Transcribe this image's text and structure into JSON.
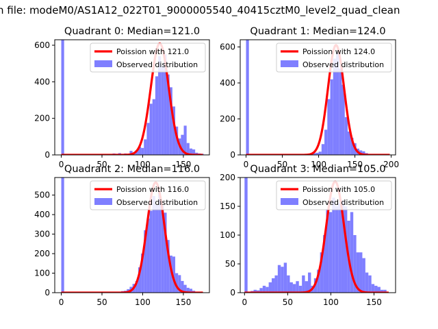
{
  "suptitle": "n file: modeM0/AS1A12_022T01_9000005540_40415cztM0_level2_quad_clean",
  "colors": {
    "bars": "#7f7fff",
    "fit": "#ff0000",
    "frame": "#000000"
  },
  "chart_data": [
    {
      "type": "bar",
      "title": "Quadrant 0: Median=121.0",
      "xlim": [
        -8,
        182
      ],
      "ylim": [
        0,
        630
      ],
      "xticks": [
        0,
        50,
        100,
        150
      ],
      "yticks": [
        0,
        200,
        400,
        600
      ],
      "legend": {
        "position": "top-right",
        "entries": [
          "Poission with 121.0",
          "Observed distribution"
        ]
      },
      "median": 121.0,
      "poisson_peak": 610,
      "bin_width": 3.5,
      "bins": [
        {
          "x": 0,
          "y": 630
        },
        {
          "x": 63,
          "y": 8
        },
        {
          "x": 66.5,
          "y": 6
        },
        {
          "x": 70,
          "y": 10
        },
        {
          "x": 73.5,
          "y": 5
        },
        {
          "x": 77,
          "y": 8
        },
        {
          "x": 80.5,
          "y": 5
        },
        {
          "x": 84,
          "y": 22
        },
        {
          "x": 87.5,
          "y": 12
        },
        {
          "x": 91,
          "y": 25
        },
        {
          "x": 94.5,
          "y": 45
        },
        {
          "x": 98,
          "y": 38
        },
        {
          "x": 101.5,
          "y": 85
        },
        {
          "x": 105,
          "y": 175
        },
        {
          "x": 108.5,
          "y": 280
        },
        {
          "x": 112,
          "y": 305
        },
        {
          "x": 115.5,
          "y": 430
        },
        {
          "x": 119,
          "y": 540
        },
        {
          "x": 122.5,
          "y": 485
        },
        {
          "x": 126,
          "y": 550
        },
        {
          "x": 129.5,
          "y": 440
        },
        {
          "x": 133,
          "y": 370
        },
        {
          "x": 136.5,
          "y": 265
        },
        {
          "x": 140,
          "y": 155
        },
        {
          "x": 143.5,
          "y": 90
        },
        {
          "x": 147,
          "y": 110
        },
        {
          "x": 150.5,
          "y": 160
        },
        {
          "x": 154,
          "y": 65
        },
        {
          "x": 157.5,
          "y": 35
        },
        {
          "x": 161,
          "y": 30
        },
        {
          "x": 164.5,
          "y": 12
        },
        {
          "x": 168,
          "y": 8
        },
        {
          "x": 171.5,
          "y": 6
        }
      ]
    },
    {
      "type": "bar",
      "title": "Quadrant 1: Median=124.0",
      "xlim": [
        -8,
        206
      ],
      "ylim": [
        0,
        640
      ],
      "xticks": [
        0,
        50,
        100,
        150,
        200
      ],
      "yticks": [
        0,
        200,
        400,
        600
      ],
      "legend": {
        "position": "top-right",
        "entries": [
          "Poission with 124.0",
          "Observed distribution"
        ]
      },
      "median": 124.0,
      "poisson_peak": 610,
      "bin_width": 4,
      "bins": [
        {
          "x": 0,
          "y": 640
        },
        {
          "x": 92,
          "y": 10
        },
        {
          "x": 96,
          "y": 12
        },
        {
          "x": 100,
          "y": 18
        },
        {
          "x": 104,
          "y": 60
        },
        {
          "x": 108,
          "y": 140
        },
        {
          "x": 112,
          "y": 310
        },
        {
          "x": 116,
          "y": 420
        },
        {
          "x": 120,
          "y": 535
        },
        {
          "x": 124,
          "y": 570
        },
        {
          "x": 128,
          "y": 480
        },
        {
          "x": 132,
          "y": 390
        },
        {
          "x": 136,
          "y": 210
        },
        {
          "x": 140,
          "y": 130
        },
        {
          "x": 144,
          "y": 95
        },
        {
          "x": 148,
          "y": 65
        },
        {
          "x": 152,
          "y": 35
        },
        {
          "x": 156,
          "y": 25
        },
        {
          "x": 160,
          "y": 20
        },
        {
          "x": 164,
          "y": 10
        }
      ]
    },
    {
      "type": "bar",
      "title": "Quadrant 2: Median=116.0",
      "xlim": [
        -8,
        182
      ],
      "ylim": [
        0,
        590
      ],
      "xticks": [
        0,
        50,
        100,
        150
      ],
      "yticks": [
        0,
        100,
        200,
        300,
        400,
        500
      ],
      "legend": {
        "position": "top-right",
        "entries": [
          "Poission with 116.0",
          "Observed distribution"
        ]
      },
      "median": 116.0,
      "poisson_peak": 565,
      "bin_width": 3.5,
      "bins": [
        {
          "x": 0,
          "y": 590
        },
        {
          "x": 70,
          "y": 5
        },
        {
          "x": 73.5,
          "y": 8
        },
        {
          "x": 77,
          "y": 10
        },
        {
          "x": 80.5,
          "y": 18
        },
        {
          "x": 84,
          "y": 30
        },
        {
          "x": 87.5,
          "y": 45
        },
        {
          "x": 91,
          "y": 60
        },
        {
          "x": 94.5,
          "y": 130
        },
        {
          "x": 98,
          "y": 200
        },
        {
          "x": 101.5,
          "y": 320
        },
        {
          "x": 105,
          "y": 380
        },
        {
          "x": 108.5,
          "y": 420
        },
        {
          "x": 112,
          "y": 495
        },
        {
          "x": 115.5,
          "y": 450
        },
        {
          "x": 119,
          "y": 510
        },
        {
          "x": 122.5,
          "y": 445
        },
        {
          "x": 126,
          "y": 410
        },
        {
          "x": 129.5,
          "y": 270
        },
        {
          "x": 133,
          "y": 190
        },
        {
          "x": 136.5,
          "y": 185
        },
        {
          "x": 140,
          "y": 100
        },
        {
          "x": 143.5,
          "y": 90
        },
        {
          "x": 147,
          "y": 60
        },
        {
          "x": 150.5,
          "y": 40
        },
        {
          "x": 154,
          "y": 25
        },
        {
          "x": 157.5,
          "y": 20
        },
        {
          "x": 161,
          "y": 10
        }
      ]
    },
    {
      "type": "bar",
      "title": "Quadrant 3: Median=105.0",
      "xlim": [
        -5,
        175
      ],
      "ylim": [
        0,
        200
      ],
      "xticks": [
        0,
        50,
        100,
        150
      ],
      "yticks": [
        0,
        50,
        100,
        150,
        200
      ],
      "legend": {
        "position": "top-right",
        "entries": [
          "Poission with 105.0",
          "Observed distribution"
        ]
      },
      "median": 105.0,
      "poisson_peak": 193,
      "bin_width": 3.5,
      "bins": [
        {
          "x": 0,
          "y": 200
        },
        {
          "x": 7,
          "y": 3
        },
        {
          "x": 10.5,
          "y": 5
        },
        {
          "x": 14,
          "y": 4
        },
        {
          "x": 17.5,
          "y": 8
        },
        {
          "x": 21,
          "y": 12
        },
        {
          "x": 24.5,
          "y": 10
        },
        {
          "x": 28,
          "y": 18
        },
        {
          "x": 31.5,
          "y": 25
        },
        {
          "x": 35,
          "y": 30
        },
        {
          "x": 38.5,
          "y": 48
        },
        {
          "x": 42,
          "y": 45
        },
        {
          "x": 45.5,
          "y": 52
        },
        {
          "x": 49,
          "y": 30
        },
        {
          "x": 52.5,
          "y": 18
        },
        {
          "x": 56,
          "y": 15
        },
        {
          "x": 59.5,
          "y": 20
        },
        {
          "x": 63,
          "y": 12
        },
        {
          "x": 66.5,
          "y": 30
        },
        {
          "x": 70,
          "y": 20
        },
        {
          "x": 73.5,
          "y": 35
        },
        {
          "x": 77,
          "y": 12
        },
        {
          "x": 80.5,
          "y": 25
        },
        {
          "x": 84,
          "y": 40
        },
        {
          "x": 87.5,
          "y": 70
        },
        {
          "x": 91,
          "y": 100
        },
        {
          "x": 94.5,
          "y": 145
        },
        {
          "x": 98,
          "y": 140
        },
        {
          "x": 101.5,
          "y": 165
        },
        {
          "x": 105,
          "y": 150
        },
        {
          "x": 108.5,
          "y": 155
        },
        {
          "x": 112,
          "y": 160
        },
        {
          "x": 115.5,
          "y": 150
        },
        {
          "x": 119,
          "y": 125
        },
        {
          "x": 122.5,
          "y": 140
        },
        {
          "x": 126,
          "y": 100
        },
        {
          "x": 129.5,
          "y": 70
        },
        {
          "x": 133,
          "y": 70
        },
        {
          "x": 136.5,
          "y": 60
        },
        {
          "x": 140,
          "y": 35
        },
        {
          "x": 143.5,
          "y": 30
        },
        {
          "x": 147,
          "y": 15
        },
        {
          "x": 150.5,
          "y": 12
        },
        {
          "x": 154,
          "y": 10
        },
        {
          "x": 157.5,
          "y": 5
        },
        {
          "x": 161,
          "y": 5
        }
      ]
    }
  ]
}
